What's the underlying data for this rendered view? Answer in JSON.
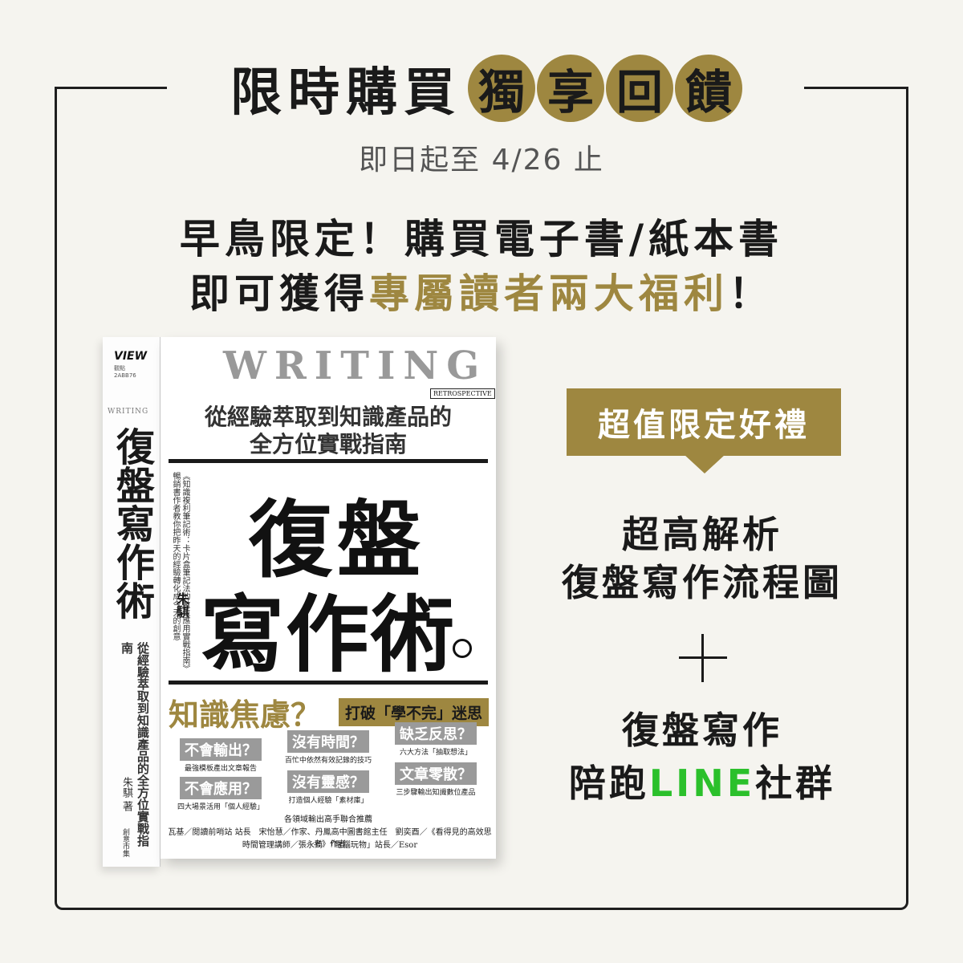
{
  "headline": {
    "plain": "限時購買",
    "gold": [
      "獨",
      "享",
      "回",
      "饋"
    ]
  },
  "period": "即日起至 4/26 止",
  "promo": {
    "line1": "早鳥限定！購買電子書/紙本書",
    "line2_plain": "即可獲得",
    "line2_gold": "專屬讀者兩大福利",
    "line2_end": "！"
  },
  "book": {
    "publisher_logo": "VIEW",
    "publisher_logo_sub": "觀點",
    "code": "2ABB76",
    "spine_writing": "WRITING",
    "spine_title": "復盤寫作術",
    "spine_subtitle": "從經驗萃取到知識產品的全方位實戰指南",
    "spine_author": "朱騏 著",
    "spine_publisher": "創意市集",
    "cover_writing": "WRITING",
    "retrospective": "RETROSPECTIVE",
    "subtitle1": "從經驗萃取到知識產品的",
    "subtitle2": "全方位實戰指南",
    "vertical_text": "《知識複利筆記術：卡片盒筆記法的數位應用實戰指南》暢銷書作者教你把昨天的經驗轉化成今天的創意",
    "author": "朱騏",
    "big_title_1": "復盤",
    "big_title_2": "寫作術",
    "anxiety": "知識焦慮？",
    "myth": "打破「學不完」迷思",
    "questions": [
      {
        "tag": "不會輸出？",
        "desc": "最強模板產出文章報告"
      },
      {
        "tag": "沒有時間？",
        "desc": "百忙中依然有效記錄的技巧"
      },
      {
        "tag": "缺乏反思？",
        "desc": "六大方法「抽取想法」"
      },
      {
        "tag": "不會應用？",
        "desc": "四大場景活用「個人經驗」"
      },
      {
        "tag": "沒有靈感？",
        "desc": "打造個人經驗「素材庫」"
      },
      {
        "tag": "文章零散？",
        "desc": "三步驟輸出知識數位產品"
      }
    ],
    "rec_title": "各領域輸出高手聯合推薦",
    "rec_line1": "瓦基／閱讀前哨站 站長　宋怡慧／作家、丹鳳高中圖書館主任　劉奕酉／《看得見的高效思考》作者",
    "rec_line2": "時間管理講師／張永錡　「電腦玩物」站長／Esor"
  },
  "gift": {
    "banner": "超值限定好禮",
    "item1_line1": "超高解析",
    "item1_line2": "復盤寫作流程圖",
    "item2_line1": "復盤寫作",
    "item2_prefix": "陪跑",
    "item2_brand": "LINE",
    "item2_suffix": "社群"
  },
  "colors": {
    "gold": "#9e8740",
    "background": "#f5f4ef",
    "line_green": "#2bc02b"
  }
}
